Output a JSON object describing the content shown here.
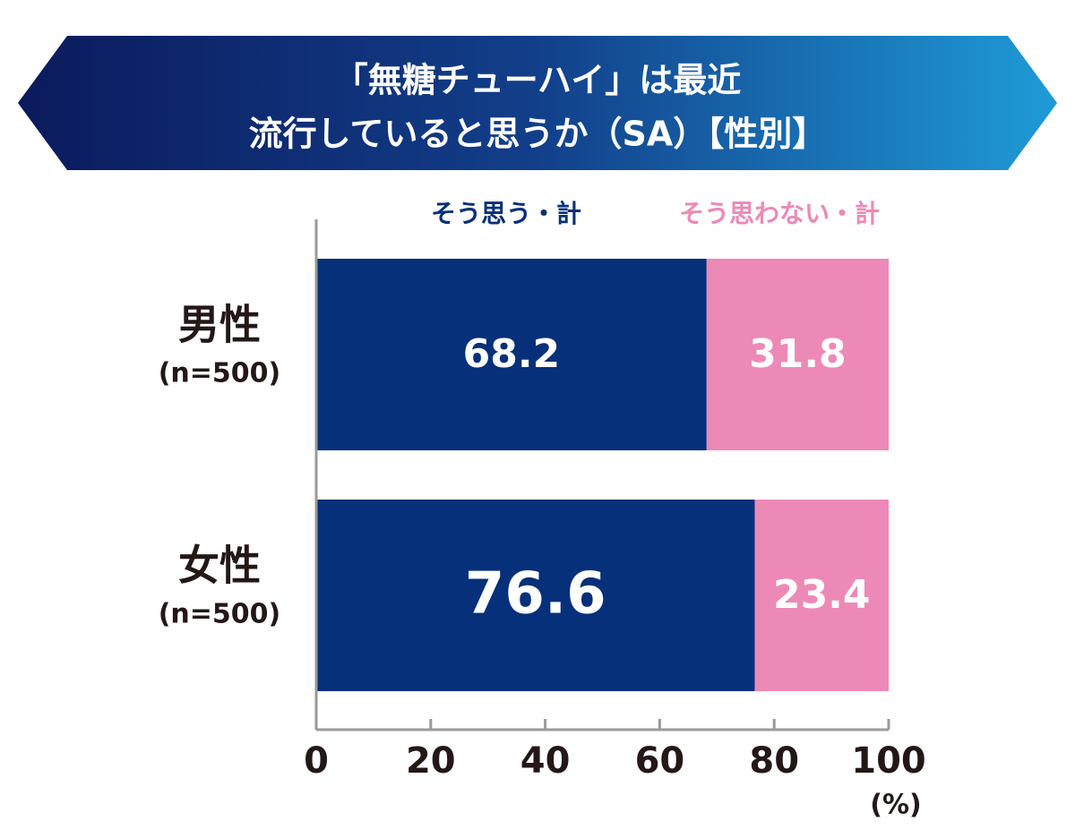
{
  "chart_data": {
    "type": "stacked-bar-horizontal",
    "title": [
      "「無糖チューハイ」は最近",
      "流行していると思うか（SA）【性別】"
    ],
    "categories": [
      "男性",
      "女性"
    ],
    "category_notes": [
      "(n=500)",
      "(n=500)"
    ],
    "series": [
      {
        "name": "そう思う・計",
        "color": "#07307a",
        "values": [
          68.2,
          76.6
        ]
      },
      {
        "name": "そう思わない・計",
        "color": "#ed89b6",
        "values": [
          31.8,
          23.4
        ]
      }
    ],
    "xlim": [
      0,
      100
    ],
    "xticks": [
      0,
      20,
      40,
      60,
      80,
      100
    ],
    "x_unit": "(%)"
  }
}
